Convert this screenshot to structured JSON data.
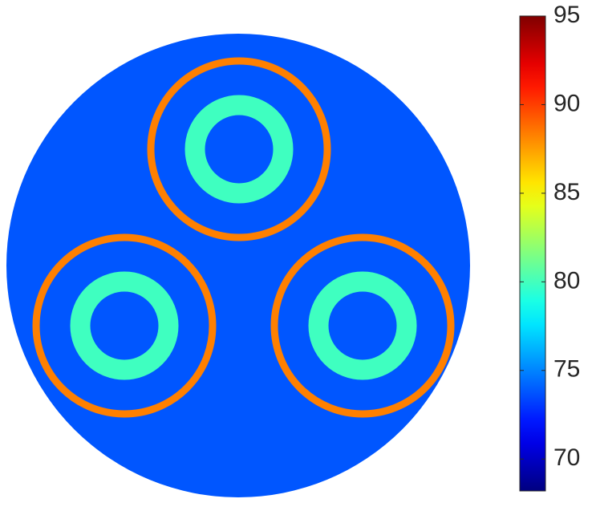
{
  "chart_data": {
    "type": "field",
    "colormap": "jet",
    "background_value": 73.8,
    "inner_ring_value": 79.9,
    "outer_ring_value": 88.3,
    "clim": [
      68.2,
      95
    ],
    "cticks": [
      70,
      75,
      80,
      85,
      90,
      95
    ]
  }
}
